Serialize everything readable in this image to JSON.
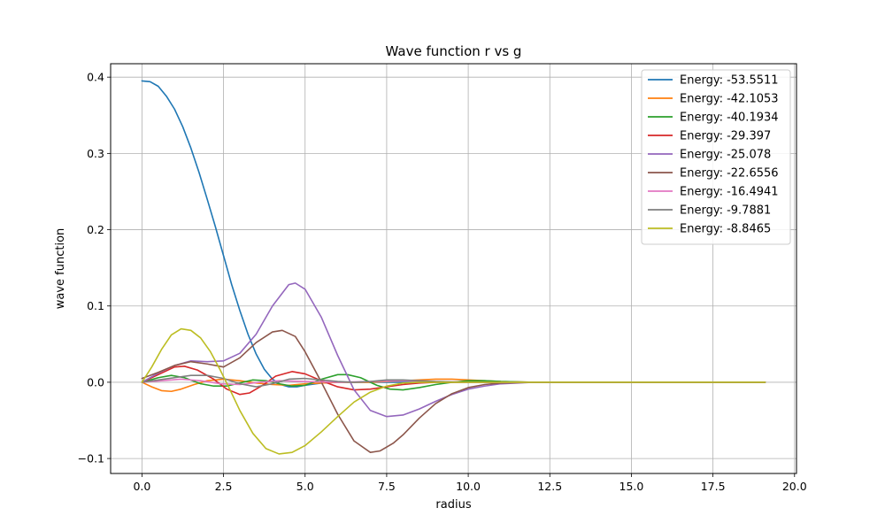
{
  "chart_data": {
    "type": "line",
    "title": "Wave function r vs g",
    "xlabel": "radius",
    "ylabel": "wave function",
    "xlim": [
      -0.96,
      20.06
    ],
    "ylim": [
      -0.1196,
      0.4176
    ],
    "x_ticks": [
      0.0,
      2.5,
      5.0,
      7.5,
      10.0,
      12.5,
      15.0,
      17.5,
      20.0
    ],
    "x_tick_labels": [
      "0.0",
      "2.5",
      "5.0",
      "7.5",
      "10.0",
      "12.5",
      "15.0",
      "17.5",
      "20.0"
    ],
    "y_ticks": [
      -0.1,
      0.0,
      0.1,
      0.2,
      0.3,
      0.4
    ],
    "y_tick_labels": [
      "−0.1",
      "0.0",
      "0.1",
      "0.2",
      "0.3",
      "0.4"
    ],
    "grid": true,
    "legend_position": "top-right",
    "series": [
      {
        "name": "Energy: -53.5511",
        "color": "#1f77b4",
        "points": [
          [
            0,
            0.395
          ],
          [
            0.25,
            0.394
          ],
          [
            0.5,
            0.388
          ],
          [
            0.75,
            0.375
          ],
          [
            1.0,
            0.358
          ],
          [
            1.25,
            0.335
          ],
          [
            1.5,
            0.307
          ],
          [
            1.75,
            0.275
          ],
          [
            2.0,
            0.24
          ],
          [
            2.25,
            0.204
          ],
          [
            2.5,
            0.166
          ],
          [
            2.75,
            0.128
          ],
          [
            3.0,
            0.094
          ],
          [
            3.25,
            0.063
          ],
          [
            3.5,
            0.037
          ],
          [
            3.75,
            0.017
          ],
          [
            4.0,
            0.004
          ],
          [
            4.25,
            -0.003
          ],
          [
            4.5,
            -0.006
          ],
          [
            4.75,
            -0.006
          ],
          [
            5.0,
            -0.004
          ],
          [
            5.5,
            -0.001
          ],
          [
            6.0,
            0.0
          ],
          [
            8.0,
            0.0
          ],
          [
            12.0,
            0.0
          ],
          [
            19.1,
            0.0
          ]
        ]
      },
      {
        "name": "Energy: -42.1053",
        "color": "#ff7f0e",
        "points": [
          [
            0,
            0.0
          ],
          [
            0.3,
            -0.006
          ],
          [
            0.6,
            -0.011
          ],
          [
            0.9,
            -0.012
          ],
          [
            1.2,
            -0.009
          ],
          [
            1.6,
            -0.003
          ],
          [
            2.0,
            0.002
          ],
          [
            2.5,
            0.004
          ],
          [
            3.0,
            0.002
          ],
          [
            3.5,
            -0.001
          ],
          [
            4.0,
            -0.003
          ],
          [
            4.5,
            -0.004
          ],
          [
            5.0,
            -0.002
          ],
          [
            6.0,
            0.0
          ],
          [
            7.0,
            0.0
          ],
          [
            8.0,
            0.002
          ],
          [
            8.5,
            0.003
          ],
          [
            9.0,
            0.004
          ],
          [
            9.5,
            0.004
          ],
          [
            10.0,
            0.003
          ],
          [
            11.0,
            0.001
          ],
          [
            12.0,
            0.0
          ],
          [
            19.1,
            0.0
          ]
        ]
      },
      {
        "name": "Energy: -40.1934",
        "color": "#2ca02c",
        "points": [
          [
            0,
            0.0
          ],
          [
            0.5,
            0.006
          ],
          [
            0.9,
            0.009
          ],
          [
            1.3,
            0.006
          ],
          [
            1.8,
            -0.002
          ],
          [
            2.2,
            -0.005
          ],
          [
            2.6,
            -0.005
          ],
          [
            3.0,
            -0.001
          ],
          [
            3.4,
            0.003
          ],
          [
            3.8,
            0.002
          ],
          [
            4.2,
            -0.002
          ],
          [
            4.6,
            -0.005
          ],
          [
            5.0,
            -0.004
          ],
          [
            5.5,
            0.004
          ],
          [
            6.0,
            0.01
          ],
          [
            6.3,
            0.01
          ],
          [
            6.7,
            0.006
          ],
          [
            7.2,
            -0.004
          ],
          [
            7.6,
            -0.009
          ],
          [
            8.0,
            -0.01
          ],
          [
            8.5,
            -0.007
          ],
          [
            9.0,
            -0.003
          ],
          [
            9.5,
            0.0
          ],
          [
            10.0,
            0.002
          ],
          [
            10.5,
            0.002
          ],
          [
            11.0,
            0.001
          ],
          [
            12.0,
            0.0
          ],
          [
            19.1,
            0.0
          ]
        ]
      },
      {
        "name": "Energy: -29.397",
        "color": "#d62728",
        "points": [
          [
            0,
            0.0
          ],
          [
            0.5,
            0.01
          ],
          [
            1.0,
            0.02
          ],
          [
            1.3,
            0.021
          ],
          [
            1.7,
            0.016
          ],
          [
            2.2,
            0.004
          ],
          [
            2.6,
            -0.009
          ],
          [
            3.0,
            -0.016
          ],
          [
            3.3,
            -0.014
          ],
          [
            3.7,
            -0.004
          ],
          [
            4.1,
            0.008
          ],
          [
            4.6,
            0.014
          ],
          [
            5.0,
            0.011
          ],
          [
            5.5,
            0.002
          ],
          [
            6.0,
            -0.006
          ],
          [
            6.5,
            -0.01
          ],
          [
            7.0,
            -0.009
          ],
          [
            7.5,
            -0.006
          ],
          [
            8.0,
            -0.003
          ],
          [
            8.5,
            -0.001
          ],
          [
            9.0,
            0.0
          ],
          [
            19.1,
            0.0
          ]
        ]
      },
      {
        "name": "Energy: -25.078",
        "color": "#9467bd",
        "points": [
          [
            0,
            0.0
          ],
          [
            0.5,
            0.012
          ],
          [
            1.0,
            0.022
          ],
          [
            1.5,
            0.028
          ],
          [
            2.0,
            0.027
          ],
          [
            2.5,
            0.028
          ],
          [
            3.0,
            0.038
          ],
          [
            3.5,
            0.063
          ],
          [
            4.0,
            0.1
          ],
          [
            4.5,
            0.128
          ],
          [
            4.7,
            0.13
          ],
          [
            5.0,
            0.122
          ],
          [
            5.5,
            0.085
          ],
          [
            6.0,
            0.035
          ],
          [
            6.5,
            -0.01
          ],
          [
            7.0,
            -0.037
          ],
          [
            7.5,
            -0.045
          ],
          [
            8.0,
            -0.043
          ],
          [
            8.5,
            -0.035
          ],
          [
            9.0,
            -0.025
          ],
          [
            9.5,
            -0.016
          ],
          [
            10.0,
            -0.009
          ],
          [
            10.5,
            -0.005
          ],
          [
            11.0,
            -0.002
          ],
          [
            12.0,
            0.0
          ],
          [
            19.1,
            0.0
          ]
        ]
      },
      {
        "name": "Energy: -22.6556",
        "color": "#8c564b",
        "points": [
          [
            0,
            0.005
          ],
          [
            0.5,
            0.013
          ],
          [
            1.0,
            0.022
          ],
          [
            1.5,
            0.027
          ],
          [
            2.0,
            0.024
          ],
          [
            2.5,
            0.02
          ],
          [
            3.0,
            0.032
          ],
          [
            3.5,
            0.052
          ],
          [
            4.0,
            0.066
          ],
          [
            4.3,
            0.068
          ],
          [
            4.7,
            0.06
          ],
          [
            5.0,
            0.04
          ],
          [
            5.5,
            0.0
          ],
          [
            6.0,
            -0.042
          ],
          [
            6.5,
            -0.077
          ],
          [
            7.0,
            -0.092
          ],
          [
            7.3,
            -0.09
          ],
          [
            7.7,
            -0.08
          ],
          [
            8.0,
            -0.069
          ],
          [
            8.5,
            -0.047
          ],
          [
            9.0,
            -0.028
          ],
          [
            9.5,
            -0.015
          ],
          [
            10.0,
            -0.007
          ],
          [
            10.5,
            -0.003
          ],
          [
            11.0,
            -0.001
          ],
          [
            12.0,
            0.0
          ],
          [
            19.1,
            0.0
          ]
        ]
      },
      {
        "name": "Energy: -16.4941",
        "color": "#e377c2",
        "points": [
          [
            0,
            0.0
          ],
          [
            0.6,
            0.002
          ],
          [
            1.2,
            0.004
          ],
          [
            1.8,
            0.002
          ],
          [
            2.4,
            -0.002
          ],
          [
            3.0,
            -0.003
          ],
          [
            3.6,
            0.0
          ],
          [
            4.2,
            0.002
          ],
          [
            5.0,
            0.001
          ],
          [
            6.0,
            0.0
          ],
          [
            7.0,
            0.001
          ],
          [
            8.0,
            0.002
          ],
          [
            9.0,
            0.001
          ],
          [
            10.0,
            0.0
          ],
          [
            19.1,
            0.0
          ]
        ]
      },
      {
        "name": "Energy: -9.7881",
        "color": "#7f7f7f",
        "points": [
          [
            0,
            0.0
          ],
          [
            0.5,
            0.003
          ],
          [
            1.0,
            0.006
          ],
          [
            1.5,
            0.009
          ],
          [
            2.0,
            0.009
          ],
          [
            2.5,
            0.005
          ],
          [
            3.0,
            -0.002
          ],
          [
            3.5,
            -0.006
          ],
          [
            4.0,
            -0.002
          ],
          [
            4.5,
            0.004
          ],
          [
            5.0,
            0.005
          ],
          [
            5.5,
            0.003
          ],
          [
            6.0,
            0.001
          ],
          [
            6.5,
            0.0
          ],
          [
            7.0,
            0.001
          ],
          [
            7.5,
            0.003
          ],
          [
            8.0,
            0.003
          ],
          [
            8.5,
            0.002
          ],
          [
            9.0,
            0.001
          ],
          [
            10.0,
            0.0
          ],
          [
            19.1,
            0.0
          ]
        ]
      },
      {
        "name": "Energy: -8.8465",
        "color": "#bcbd22",
        "points": [
          [
            0,
            0.0
          ],
          [
            0.3,
            0.02
          ],
          [
            0.6,
            0.043
          ],
          [
            0.9,
            0.062
          ],
          [
            1.2,
            0.07
          ],
          [
            1.5,
            0.068
          ],
          [
            1.8,
            0.058
          ],
          [
            2.1,
            0.04
          ],
          [
            2.4,
            0.016
          ],
          [
            2.7,
            -0.01
          ],
          [
            3.0,
            -0.037
          ],
          [
            3.4,
            -0.067
          ],
          [
            3.8,
            -0.087
          ],
          [
            4.2,
            -0.094
          ],
          [
            4.6,
            -0.092
          ],
          [
            5.0,
            -0.083
          ],
          [
            5.5,
            -0.065
          ],
          [
            6.0,
            -0.045
          ],
          [
            6.5,
            -0.026
          ],
          [
            7.0,
            -0.013
          ],
          [
            7.5,
            -0.005
          ],
          [
            8.0,
            -0.001
          ],
          [
            8.5,
            0.0
          ],
          [
            19.1,
            0.0
          ]
        ]
      }
    ]
  }
}
